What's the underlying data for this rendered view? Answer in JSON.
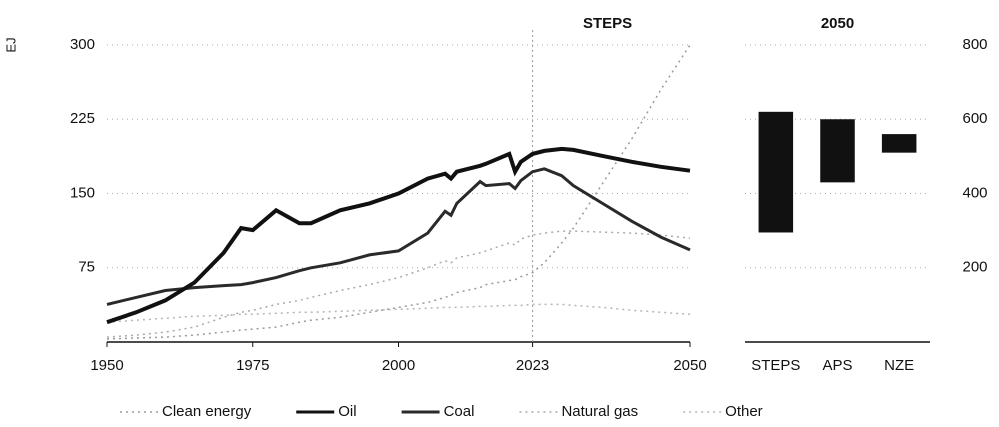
{
  "chart_data": [
    {
      "type": "line",
      "y_label": "EJ",
      "annotation": {
        "text": "STEPS",
        "x": 2023
      },
      "x": [
        1950,
        1955,
        1960,
        1965,
        1970,
        1973,
        1975,
        1979,
        1983,
        1985,
        1990,
        1995,
        2000,
        2005,
        2008,
        2009,
        2010,
        2014,
        2015,
        2019,
        2020,
        2021,
        2023,
        2025,
        2028,
        2030,
        2035,
        2040,
        2045,
        2050
      ],
      "series": [
        {
          "name": "Clean energy",
          "color": "#9a9a9a",
          "dashed": true,
          "values": [
            3,
            4,
            5,
            7,
            10,
            12,
            13,
            15,
            20,
            22,
            25,
            30,
            35,
            40,
            45,
            47,
            50,
            55,
            58,
            62,
            63,
            66,
            70,
            80,
            100,
            115,
            160,
            205,
            255,
            300
          ]
        },
        {
          "name": "Oil",
          "color": "#111111",
          "dashed": false,
          "values": [
            20,
            30,
            42,
            60,
            90,
            115,
            113,
            133,
            120,
            120,
            133,
            140,
            150,
            165,
            170,
            165,
            172,
            178,
            180,
            190,
            172,
            182,
            190,
            193,
            195,
            194,
            188,
            182,
            177,
            173
          ]
        },
        {
          "name": "Coal",
          "color": "#2a2a2a",
          "dashed": false,
          "values": [
            38,
            45,
            52,
            55,
            57,
            58,
            60,
            65,
            72,
            75,
            80,
            88,
            92,
            110,
            132,
            128,
            140,
            162,
            158,
            160,
            155,
            163,
            172,
            175,
            168,
            158,
            140,
            122,
            106,
            93
          ]
        },
        {
          "name": "Natural gas",
          "color": "#aaaaaa",
          "dashed": true,
          "values": [
            5,
            7,
            10,
            15,
            25,
            30,
            32,
            38,
            42,
            45,
            52,
            58,
            65,
            75,
            82,
            80,
            85,
            90,
            92,
            100,
            98,
            104,
            108,
            110,
            112,
            112,
            111,
            110,
            108,
            105
          ]
        },
        {
          "name": "Other",
          "color": "#b5b5b5",
          "dashed": true,
          "values": [
            20,
            22,
            24,
            26,
            27,
            28,
            28,
            29,
            30,
            30,
            31,
            32,
            33,
            34,
            35,
            35,
            35,
            36,
            36,
            37,
            37,
            37,
            38,
            38,
            38,
            37,
            35,
            32,
            30,
            28
          ]
        }
      ],
      "xlim": [
        1950,
        2050
      ],
      "xticks": [
        1950,
        1975,
        2000,
        2023,
        2050
      ],
      "ylim": [
        0,
        300
      ],
      "yticks": [
        75,
        150,
        225,
        300
      ],
      "grid": true
    },
    {
      "type": "floating-bar",
      "title": "2050",
      "color": "#111111",
      "categories": [
        "STEPS",
        "APS",
        "NZE"
      ],
      "ranges": [
        [
          295,
          620
        ],
        [
          430,
          600
        ],
        [
          510,
          560
        ]
      ],
      "ylim": [
        0,
        800
      ],
      "yticks": [
        200,
        400,
        600,
        800
      ],
      "grid": true
    }
  ]
}
